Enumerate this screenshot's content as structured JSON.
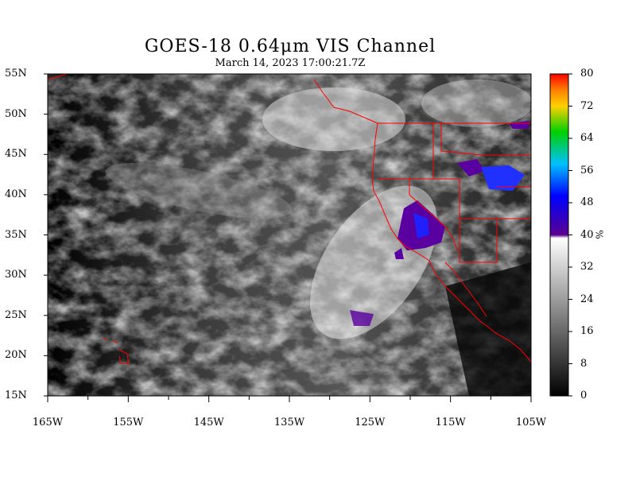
{
  "header": {
    "title": "GOES-18  0.64μm VIS Channel",
    "timestamp": "March 14,  2023 17:00:21.7Z"
  },
  "map": {
    "lat_labels": [
      "55N",
      "50N",
      "45N",
      "40N",
      "35N",
      "30N",
      "25N",
      "20N",
      "15N"
    ],
    "lon_labels": [
      "165W",
      "155W",
      "145W",
      "135W",
      "125W",
      "115W",
      "105W"
    ],
    "border_color": "#ff0000",
    "lat_range": [
      15,
      55
    ],
    "lon_range": [
      -165,
      -105
    ]
  },
  "colorbar": {
    "labels": [
      "80",
      "72",
      "64",
      "56",
      "48",
      "40",
      "32",
      "24",
      "16",
      "8",
      "0"
    ],
    "unit": "%",
    "range": [
      0,
      80
    ],
    "colors": {
      "low": "#000000",
      "mid": "#ffffff",
      "blue": "#0000ff",
      "purple": "#5a0090",
      "green": "#00d000",
      "orange": "#ff9000",
      "red": "#ff0000"
    }
  }
}
